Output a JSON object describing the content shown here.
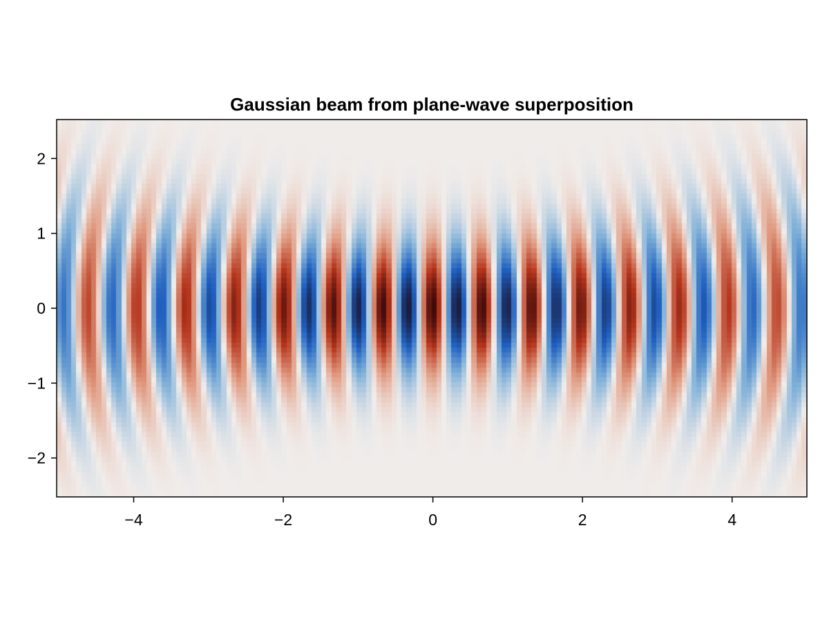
{
  "chart_data": {
    "type": "heatmap",
    "title": "Gaussian beam from plane-wave superposition",
    "xlabel": "",
    "ylabel": "",
    "xlim": [
      -5.03,
      5.0
    ],
    "ylim": [
      -2.52,
      2.52
    ],
    "x_ticks": [
      -4,
      -2,
      0,
      2,
      4
    ],
    "y_ticks": [
      -2,
      -1,
      0,
      1,
      2
    ],
    "x_tick_labels": [
      "−4",
      "−2",
      "0",
      "2",
      "4"
    ],
    "y_tick_labels": [
      "−2",
      "−1",
      "0",
      "1",
      "2"
    ],
    "grid": false,
    "legend": "none",
    "colormap": "balance (blue–white–red, diverging)",
    "colormap_stops": [
      "#1a1a3a",
      "#1f5fbf",
      "#7fb0d8",
      "#f1edeb",
      "#e09a80",
      "#b5341c",
      "#3a0a0a"
    ],
    "field": {
      "quantity": "Re(E) of a focused Gaussian beam",
      "propagation_axis": "x",
      "focus": [
        0,
        0
      ],
      "wavelength": 0.645,
      "waist": 0.85,
      "rayleigh_range": 3.5,
      "value_range": [
        -1,
        1
      ]
    }
  }
}
